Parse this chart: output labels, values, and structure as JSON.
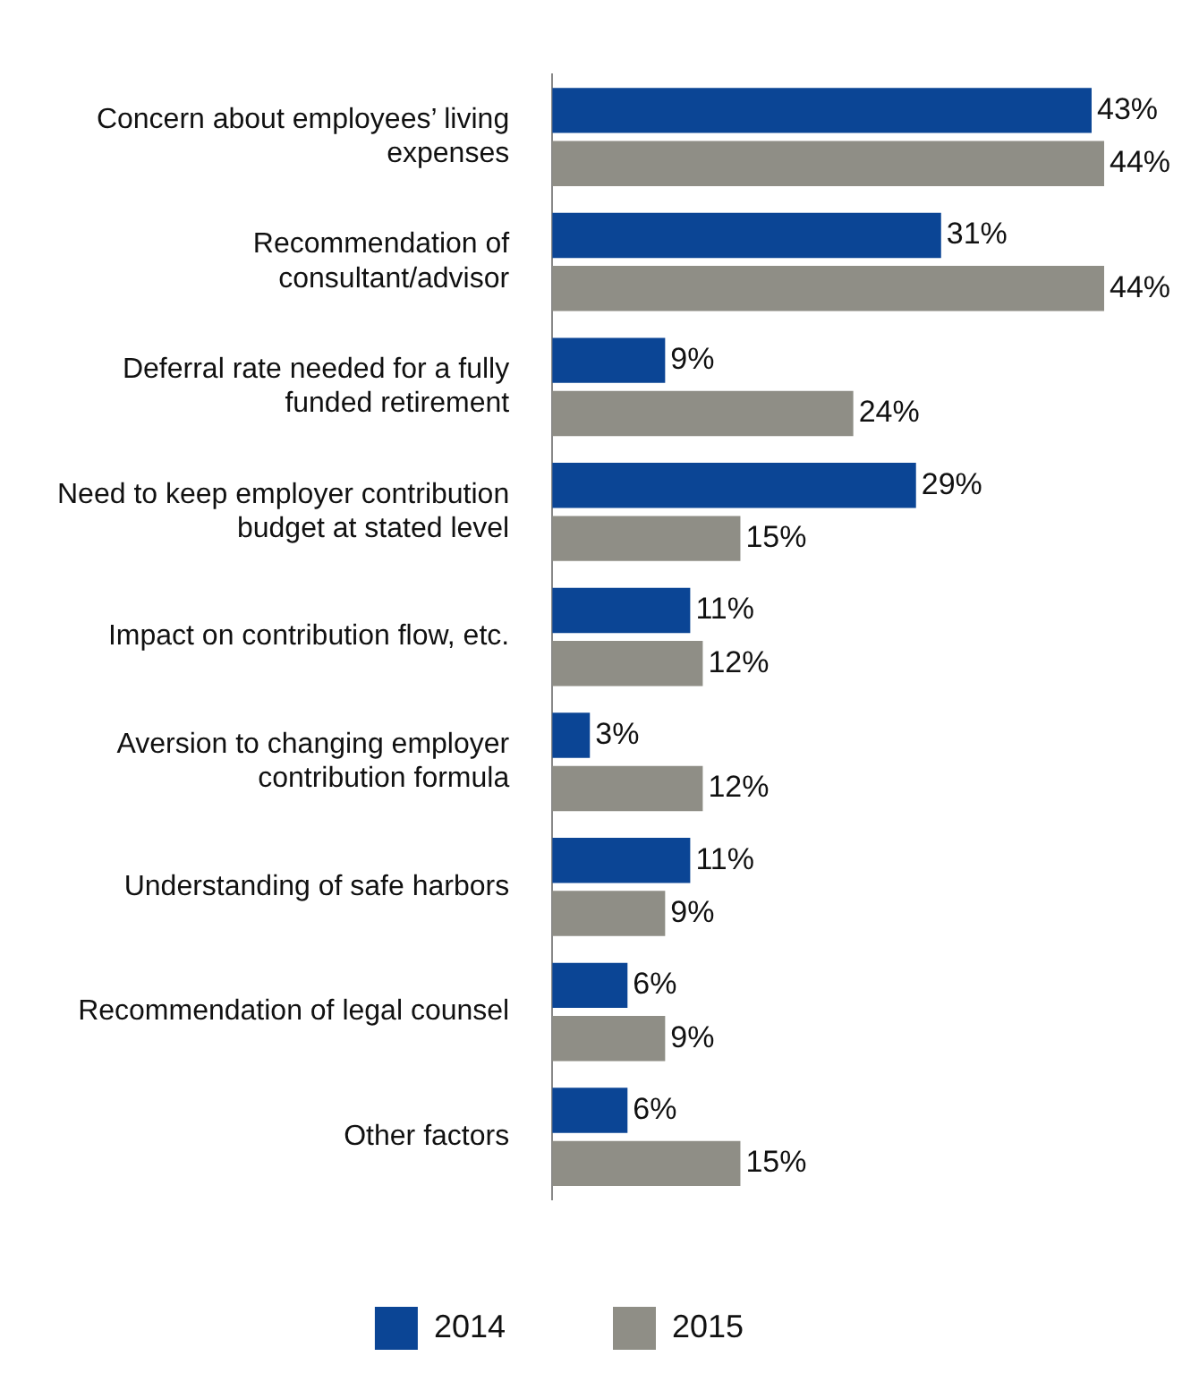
{
  "chart_data": {
    "type": "bar",
    "orientation": "horizontal",
    "categories": [
      "Concern about employees’ living expenses",
      "Recommendation of consultant/advisor",
      "Deferral rate needed for a fully funded retirement",
      "Need to keep employer contribution budget at stated level",
      "Impact on contribution flow, etc.",
      "Aversion to changing employer contribution formula",
      "Understanding of safe harbors",
      "Recommendation of legal counsel",
      "Other factors"
    ],
    "series": [
      {
        "name": "2014",
        "color": "#0b4595",
        "values": [
          43,
          31,
          9,
          29,
          11,
          3,
          11,
          6,
          6
        ],
        "value_labels": [
          "43%",
          "31%",
          "9%",
          "29%",
          "11%",
          "3%",
          "11%",
          "6%",
          "6%"
        ]
      },
      {
        "name": "2015",
        "color": "#8f8e86",
        "values": [
          44,
          44,
          24,
          15,
          12,
          12,
          9,
          9,
          15
        ],
        "value_labels": [
          "44%",
          "44%",
          "24%",
          "15%",
          "12%",
          "12%",
          "9%",
          "9%",
          "15%"
        ]
      }
    ],
    "xlim": [
      0,
      44
    ],
    "tick_labels": "y",
    "grid": false,
    "legend": "bottom"
  }
}
